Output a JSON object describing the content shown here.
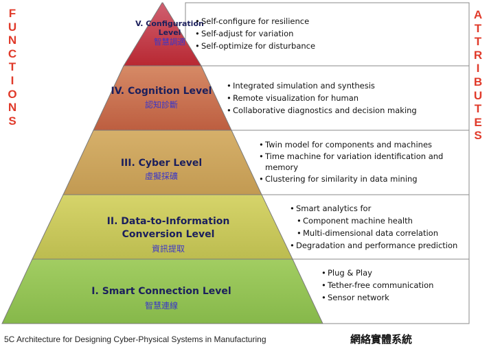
{
  "side_labels": {
    "functions": "FUNCTIONS",
    "attributes": "ATTRIBUTES"
  },
  "colors": {
    "side_text": "#e03a2a",
    "level_title": "#1b1f5c",
    "level_chinese": "#3a36c8",
    "level_fills": [
      "#8cbd4f",
      "#c8c85a",
      "#c9a45c",
      "#c76a4a",
      "#c2303c"
    ]
  },
  "levels": [
    {
      "title": "V. Configuration Level",
      "chinese": "智慧調適",
      "attributes": [
        "Self-configure for resilience",
        "Self-adjust for variation",
        "Self-optimize for disturbance"
      ]
    },
    {
      "title": "IV. Cognition Level",
      "chinese": "認知診斷",
      "attributes": [
        "Integrated simulation and synthesis",
        "Remote visualization for human",
        "Collaborative diagnostics and decision making"
      ]
    },
    {
      "title": "III. Cyber Level",
      "chinese": "虛擬採礦",
      "attributes": [
        "Twin model for components and machines",
        "Time machine for variation identification and memory",
        "Clustering for similarity in data mining"
      ]
    },
    {
      "title": "II. Data-to-Information Conversion Level",
      "chinese": "資訊提取",
      "attributes": [
        "Smart analytics for",
        "Component machine health",
        "Multi-dimensional data correlation",
        "Degradation and performance prediction"
      ]
    },
    {
      "title": "I. Smart Connection Level",
      "chinese": "智慧連線",
      "attributes": [
        "Plug & Play",
        "Tether-free communication",
        "Sensor network"
      ]
    }
  ],
  "caption": "5C Architecture for Designing Cyber-Physical Systems in Manufacturing",
  "caption_chinese": "網絡實體系統"
}
